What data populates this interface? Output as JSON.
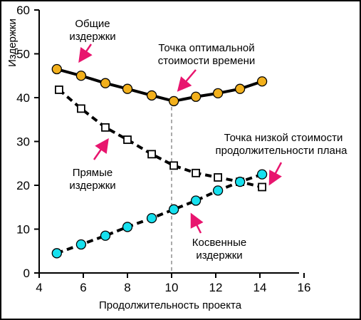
{
  "chart_data": {
    "type": "line",
    "title": "",
    "xlabel": "Продолжительность проекта",
    "ylabel": "Издержки",
    "xlim": [
      4,
      16
    ],
    "ylim": [
      0,
      60
    ],
    "x_ticks": [
      "4",
      "6",
      "8",
      "10",
      "12",
      "14",
      "16"
    ],
    "y_ticks": [
      "0",
      "10",
      "20",
      "30",
      "40",
      "50",
      "60"
    ],
    "grid": false,
    "legend": "none",
    "series": [
      {
        "name": "Общие издержки",
        "marker": "circle",
        "line_style": "solid",
        "marker_color": "#f2b01c",
        "x": [
          4.8,
          5.9,
          7.0,
          8.0,
          9.1,
          10.1,
          11.1,
          12.1,
          13.1,
          14.1
        ],
        "y": [
          46.5,
          45.0,
          43.3,
          42.0,
          40.5,
          39.2,
          40.2,
          41.0,
          42.0,
          43.7
        ]
      },
      {
        "name": "Прямые издержки",
        "marker": "square",
        "line_style": "dashed",
        "marker_color": "#ffffff",
        "x": [
          4.9,
          5.9,
          7.0,
          8.0,
          9.1,
          10.1,
          11.1,
          12.1,
          13.1,
          14.1
        ],
        "y": [
          41.8,
          37.5,
          33.2,
          30.4,
          27.1,
          24.5,
          22.8,
          21.8,
          20.8,
          19.6
        ]
      },
      {
        "name": "Косвенные издержки",
        "marker": "circle",
        "line_style": "dashed",
        "marker_color": "#16e0ee",
        "x": [
          4.8,
          5.9,
          7.0,
          8.0,
          9.1,
          10.1,
          11.1,
          12.1,
          13.1,
          14.1
        ],
        "y": [
          4.5,
          6.5,
          8.5,
          10.5,
          12.5,
          14.5,
          16.5,
          18.8,
          20.8,
          22.5
        ]
      }
    ],
    "optimal_x": 10,
    "annotations": [
      {
        "id": "total",
        "lines": [
          "Общие",
          "издержки"
        ]
      },
      {
        "id": "optimal",
        "lines": [
          "Точка оптимальной",
          "стоимости времени"
        ]
      },
      {
        "id": "lowcost",
        "lines": [
          "Точка низкой стоимости",
          "продолжительности плана"
        ]
      },
      {
        "id": "direct",
        "lines": [
          "Прямые",
          "издержки"
        ]
      },
      {
        "id": "indirect",
        "lines": [
          "Косвенные",
          "издержки"
        ]
      }
    ],
    "colors": {
      "arrow": "#e8156e",
      "line": "#000000"
    }
  }
}
